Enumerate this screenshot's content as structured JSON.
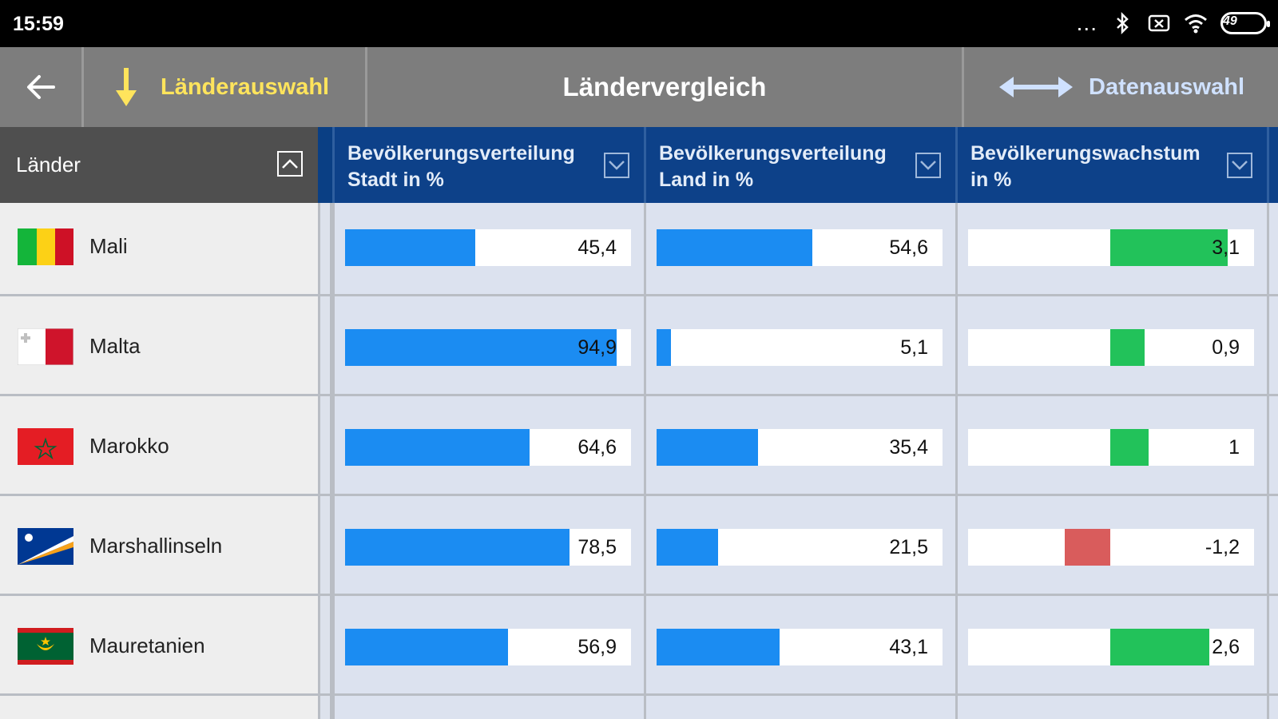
{
  "status_bar": {
    "time": "15:59",
    "dots": "...",
    "battery": "49",
    "icons": [
      "bluetooth-icon",
      "sim-icon",
      "wifi-icon",
      "battery-icon"
    ]
  },
  "nav": {
    "back_icon": "arrow-left-icon",
    "laenderauswahl": "Länderauswahl",
    "title": "Ländervergleich",
    "datenauswahl": "Datenauswahl"
  },
  "table": {
    "countries_header": "Länder",
    "columns": [
      {
        "label_line1": "Bevölkerungsverteilung",
        "label_line2": "Stadt in %"
      },
      {
        "label_line1": "Bevölkerungsverteilung",
        "label_line2": "Land in %"
      },
      {
        "label_line1": "Bevölkerungswachstum",
        "label_line2": "in %"
      }
    ],
    "rows": [
      {
        "country": "Mali",
        "stadt": 45.4,
        "stadt_label": "45,4",
        "land": 54.6,
        "land_label": "54,6",
        "wachstum": 3.1,
        "wachstum_label": "3,1"
      },
      {
        "country": "Malta",
        "stadt": 94.9,
        "stadt_label": "94,9",
        "land": 5.1,
        "land_label": "5,1",
        "wachstum": 0.9,
        "wachstum_label": "0,9"
      },
      {
        "country": "Marokko",
        "stadt": 64.6,
        "stadt_label": "64,6",
        "land": 35.4,
        "land_label": "35,4",
        "wachstum": 1.0,
        "wachstum_label": "1"
      },
      {
        "country": "Marshallinseln",
        "stadt": 78.5,
        "stadt_label": "78,5",
        "land": 21.5,
        "land_label": "21,5",
        "wachstum": -1.2,
        "wachstum_label": "-1,2"
      },
      {
        "country": "Mauretanien",
        "stadt": 56.9,
        "stadt_label": "56,9",
        "land": 43.1,
        "land_label": "43,1",
        "wachstum": 2.6,
        "wachstum_label": "2,6"
      }
    ]
  },
  "colors": {
    "bar_blue": "#1b8cf2",
    "growth_positive": "#22c25a",
    "growth_negative": "#d95c5c"
  }
}
